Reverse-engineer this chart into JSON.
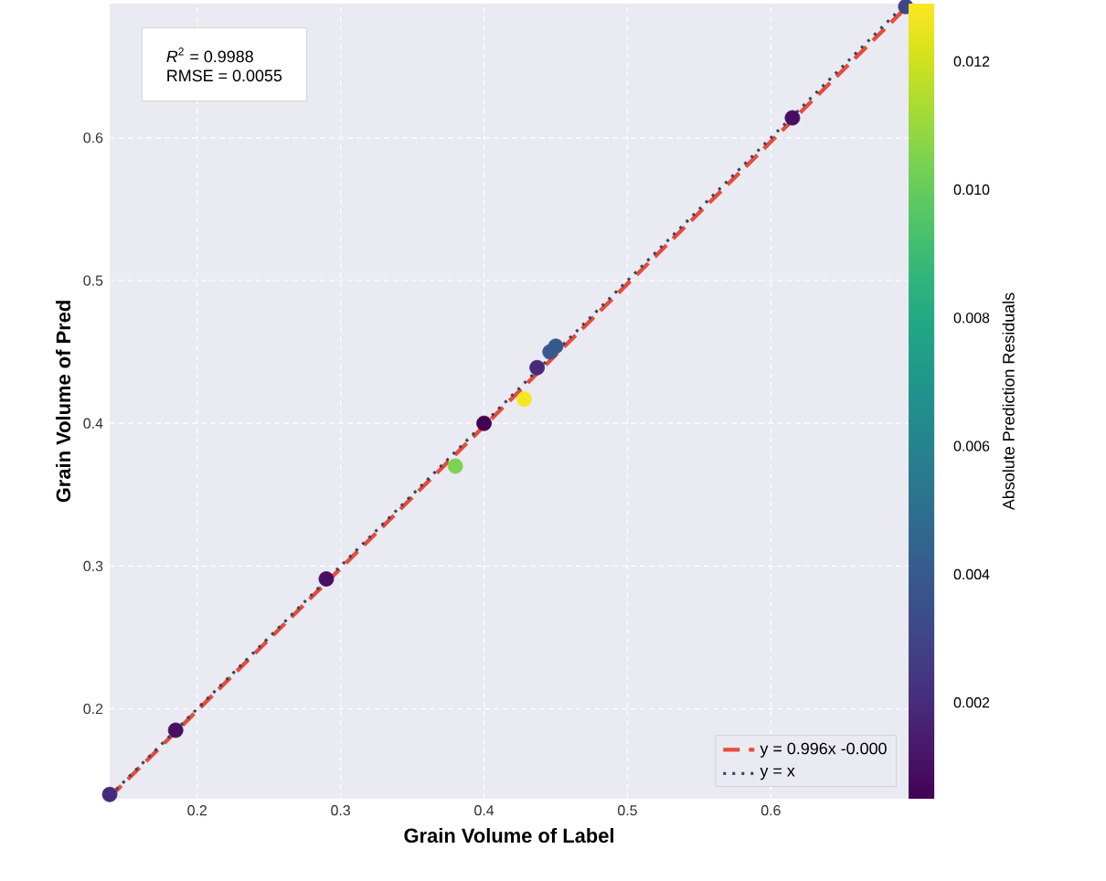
{
  "chart_data": {
    "type": "scatter",
    "xlabel": "Grain Volume of Label",
    "ylabel": "Grain Volume of Pred",
    "clabel": "Absolute Prediction Residuals",
    "annotations": [
      "*R*$^{2}$ = 0.9988",
      "RMSE = 0.0055"
    ],
    "xlim": [
      0.139,
      0.696
    ],
    "ylim": [
      0.137,
      0.694
    ],
    "xticks": [
      0.2,
      0.3,
      0.4,
      0.5,
      0.6
    ],
    "yticks": [
      0.2,
      0.3,
      0.4,
      0.5,
      0.6
    ],
    "clim": [
      0.0005,
      0.0129
    ],
    "cticks": [
      0.002,
      0.004,
      0.006,
      0.008,
      {
        "value": 0.01,
        "label": "0.010"
      },
      0.012
    ],
    "grid": true,
    "legend": "bottom right",
    "marker": "circle",
    "series": [
      {
        "colors": [
          "#472a7a",
          "#470e61",
          "#470e61",
          "#7dd250",
          "#440154",
          "#f8e621",
          "#472a7a",
          "#38598c",
          "#38598c",
          "#470e61",
          "#414487"
        ],
        "x": [
          0.139,
          0.185,
          0.29,
          0.38,
          0.4,
          0.428,
          0.437,
          0.446,
          0.45,
          0.615,
          0.694
        ],
        "values": [
          0.14,
          0.185,
          0.291,
          0.37,
          0.4,
          0.417,
          0.439,
          0.45,
          0.454,
          0.614,
          0.692
        ],
        "cvalues": [
          0.002,
          0.001,
          0.001,
          0.0105,
          0.0005,
          0.0128,
          0.002,
          0.004,
          0.004,
          0.001,
          0.003
        ]
      },
      {
        "type": "line",
        "name": "y = 0.996x -0.000",
        "color": "#e74c3c",
        "line_style": "dashed",
        "marker": "none",
        "x": [
          0.139,
          0.696
        ],
        "values": [
          0.138,
          0.693
        ]
      },
      {
        "type": "line",
        "name": "y = x",
        "color": "#34495e",
        "line_style": "dotted",
        "marker": "none",
        "x": [
          0.139,
          0.694
        ],
        "values": [
          0.139,
          0.694
        ]
      }
    ]
  }
}
